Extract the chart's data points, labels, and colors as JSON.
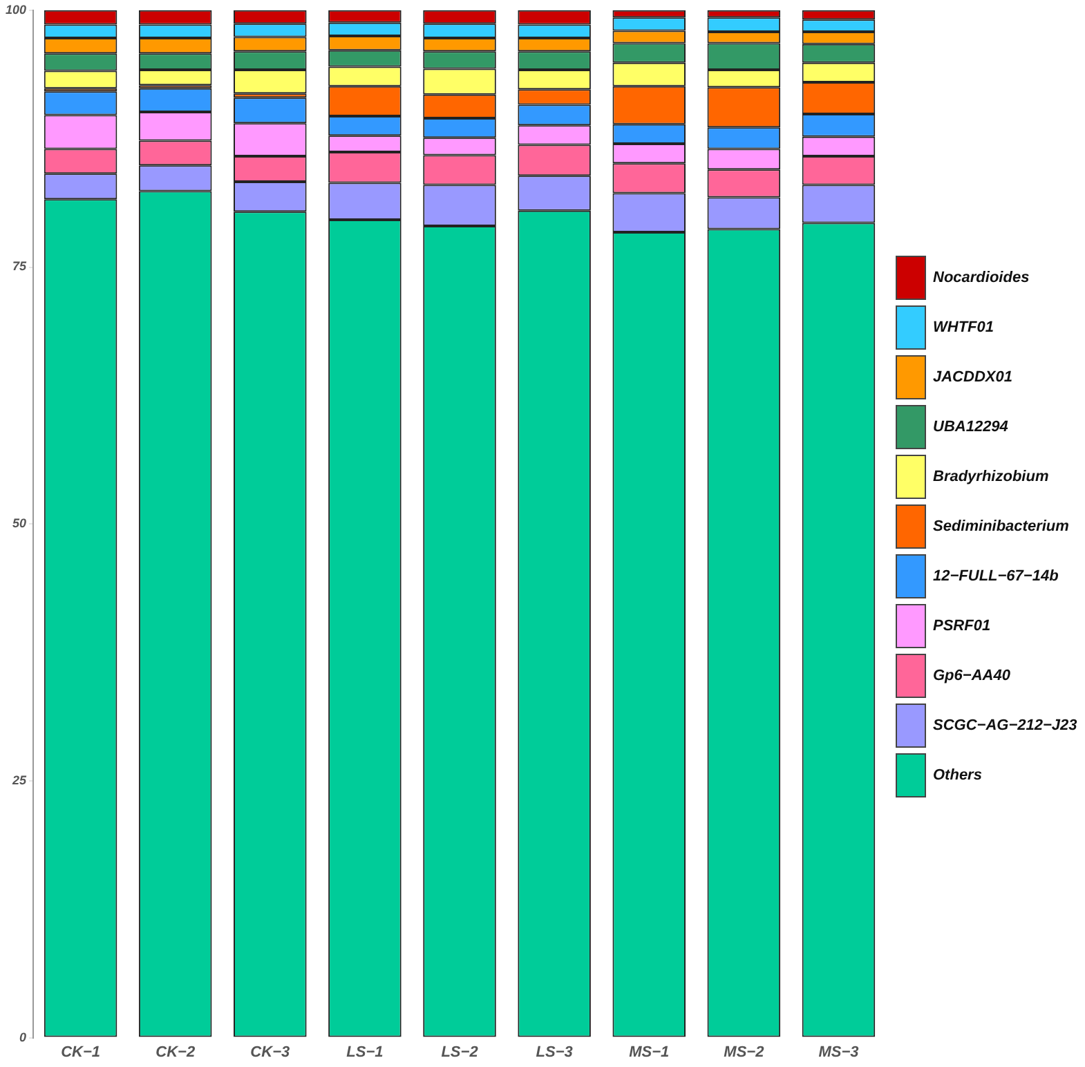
{
  "chart_data": {
    "type": "bar",
    "stacked": true,
    "categories": [
      "CK−1",
      "CK−2",
      "CK−3",
      "LS−1",
      "LS−2",
      "LS−3",
      "MS−1",
      "MS−2",
      "MS−3"
    ],
    "series": [
      {
        "name": "Others",
        "color": "#00cc99",
        "values": [
          81.6,
          82.4,
          80.4,
          79.6,
          79.0,
          80.5,
          78.4,
          78.7,
          79.3
        ]
      },
      {
        "name": "SCGC−AG−212−J23",
        "color": "#9999ff",
        "values": [
          2.5,
          2.5,
          2.9,
          3.6,
          4.0,
          3.4,
          3.8,
          3.1,
          3.7
        ]
      },
      {
        "name": "Gp6−AA40",
        "color": "#ff6699",
        "values": [
          2.4,
          2.4,
          2.5,
          3.0,
          2.9,
          3.0,
          2.9,
          2.7,
          2.8
        ]
      },
      {
        "name": "PSRF01",
        "color": "#ff99ff",
        "values": [
          3.3,
          2.8,
          3.2,
          1.6,
          1.7,
          1.9,
          1.9,
          2.0,
          1.9
        ]
      },
      {
        "name": "12−FULL−67−14b",
        "color": "#3399ff",
        "values": [
          2.3,
          2.3,
          2.5,
          1.9,
          1.9,
          2.0,
          1.9,
          2.1,
          2.2
        ]
      },
      {
        "name": "Sediminibacterium",
        "color": "#ff6600",
        "values": [
          0.3,
          0.3,
          0.4,
          2.9,
          2.3,
          1.5,
          3.7,
          3.9,
          3.1
        ]
      },
      {
        "name": "Bradyrhizobium",
        "color": "#ffff66",
        "values": [
          1.7,
          1.5,
          2.3,
          1.9,
          2.5,
          1.9,
          2.3,
          1.7,
          1.9
        ]
      },
      {
        "name": "UBA12294",
        "color": "#339966",
        "values": [
          1.7,
          1.6,
          1.8,
          1.6,
          1.7,
          1.8,
          1.9,
          2.6,
          1.8
        ]
      },
      {
        "name": "JACDDX01",
        "color": "#ff9900",
        "values": [
          1.5,
          1.5,
          1.4,
          1.4,
          1.3,
          1.3,
          1.2,
          1.1,
          1.2
        ]
      },
      {
        "name": "WHTF01",
        "color": "#33ccff",
        "values": [
          1.3,
          1.3,
          1.3,
          1.3,
          1.4,
          1.3,
          1.3,
          1.4,
          1.2
        ]
      },
      {
        "name": "Nocardioides",
        "color": "#cc0000",
        "values": [
          1.4,
          1.4,
          1.3,
          1.2,
          1.3,
          1.4,
          0.7,
          0.7,
          0.9
        ]
      }
    ],
    "ylim": [
      0,
      100
    ],
    "yticks": [
      0,
      25,
      50,
      75,
      100
    ],
    "grid": false,
    "legend": "right"
  }
}
